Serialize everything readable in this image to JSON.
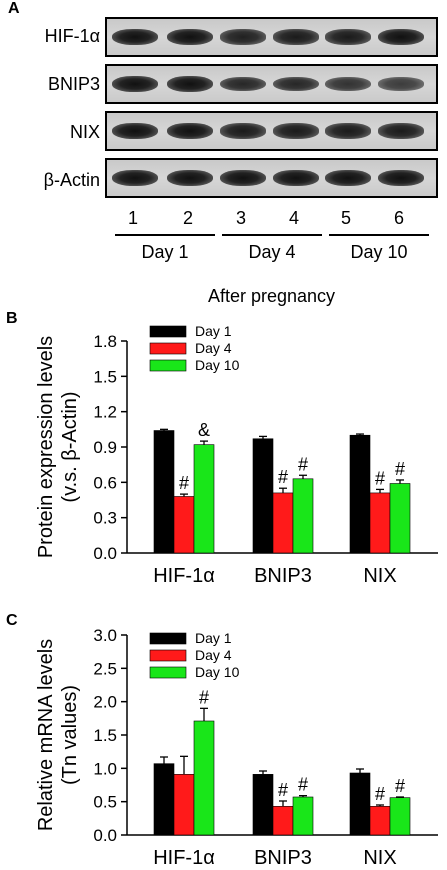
{
  "panel_a": {
    "letter": "A",
    "blot_rows": [
      "HIF-1α",
      "BNIP3",
      "NIX",
      "β-Actin"
    ],
    "band_intensity": [
      [
        1.0,
        1.0,
        0.85,
        0.9,
        0.9,
        1.0
      ],
      [
        1.0,
        1.0,
        0.8,
        0.8,
        0.7,
        0.6
      ],
      [
        1.0,
        1.0,
        0.9,
        0.9,
        0.9,
        0.9
      ],
      [
        1.0,
        1.0,
        1.0,
        1.0,
        1.0,
        1.0
      ]
    ],
    "lanes": [
      "1",
      "2",
      "3",
      "4",
      "5",
      "6"
    ],
    "groups": [
      "Day 1",
      "Day 4",
      "Day 10"
    ],
    "caption": "After pregnancy"
  },
  "chart_data": [
    {
      "type": "bar",
      "panel": "B",
      "ylabel": [
        "Protein expression levels",
        "(v.s. β-Actin)"
      ],
      "ylim": [
        0,
        1.8
      ],
      "yticks": [
        "0.0",
        "0.3",
        "0.6",
        "0.9",
        "1.2",
        "1.5",
        "1.8"
      ],
      "categories": [
        "HIF-1α",
        "BNIP3",
        "NIX"
      ],
      "legend_position": "top-left",
      "series": [
        {
          "name": "Day 1",
          "color": "#000000",
          "values": [
            1.04,
            0.97,
            1.0
          ],
          "errors": [
            0.01,
            0.02,
            0.01
          ],
          "marks": [
            "",
            "",
            ""
          ]
        },
        {
          "name": "Day 4",
          "color": "#ff1a1a",
          "values": [
            0.48,
            0.51,
            0.51
          ],
          "errors": [
            0.02,
            0.04,
            0.03
          ],
          "marks": [
            "#",
            "#",
            "#"
          ]
        },
        {
          "name": "Day 10",
          "color": "#19e619",
          "values": [
            0.92,
            0.63,
            0.59
          ],
          "errors": [
            0.03,
            0.03,
            0.03
          ],
          "marks": [
            "&",
            "#",
            "#"
          ]
        }
      ]
    },
    {
      "type": "bar",
      "panel": "C",
      "ylabel": [
        "Relative mRNA levels",
        "(Tn values)"
      ],
      "ylim": [
        0,
        3.0
      ],
      "yticks": [
        "0.0",
        "0.5",
        "1.0",
        "1.5",
        "2.0",
        "2.5",
        "3.0"
      ],
      "categories": [
        "HIF-1α",
        "BNIP3",
        "NIX"
      ],
      "legend_position": "top-left",
      "series": [
        {
          "name": "Day 1",
          "color": "#000000",
          "values": [
            1.07,
            0.91,
            0.93
          ],
          "errors": [
            0.1,
            0.05,
            0.06
          ],
          "marks": [
            "",
            "",
            ""
          ]
        },
        {
          "name": "Day 4",
          "color": "#ff1a1a",
          "values": [
            0.91,
            0.43,
            0.43
          ],
          "errors": [
            0.27,
            0.08,
            0.02
          ],
          "marks": [
            "",
            "#",
            "#"
          ]
        },
        {
          "name": "Day 10",
          "color": "#19e619",
          "values": [
            1.71,
            0.57,
            0.56
          ],
          "errors": [
            0.19,
            0.02,
            0.01
          ],
          "marks": [
            "#",
            "#",
            "#"
          ]
        }
      ]
    }
  ]
}
